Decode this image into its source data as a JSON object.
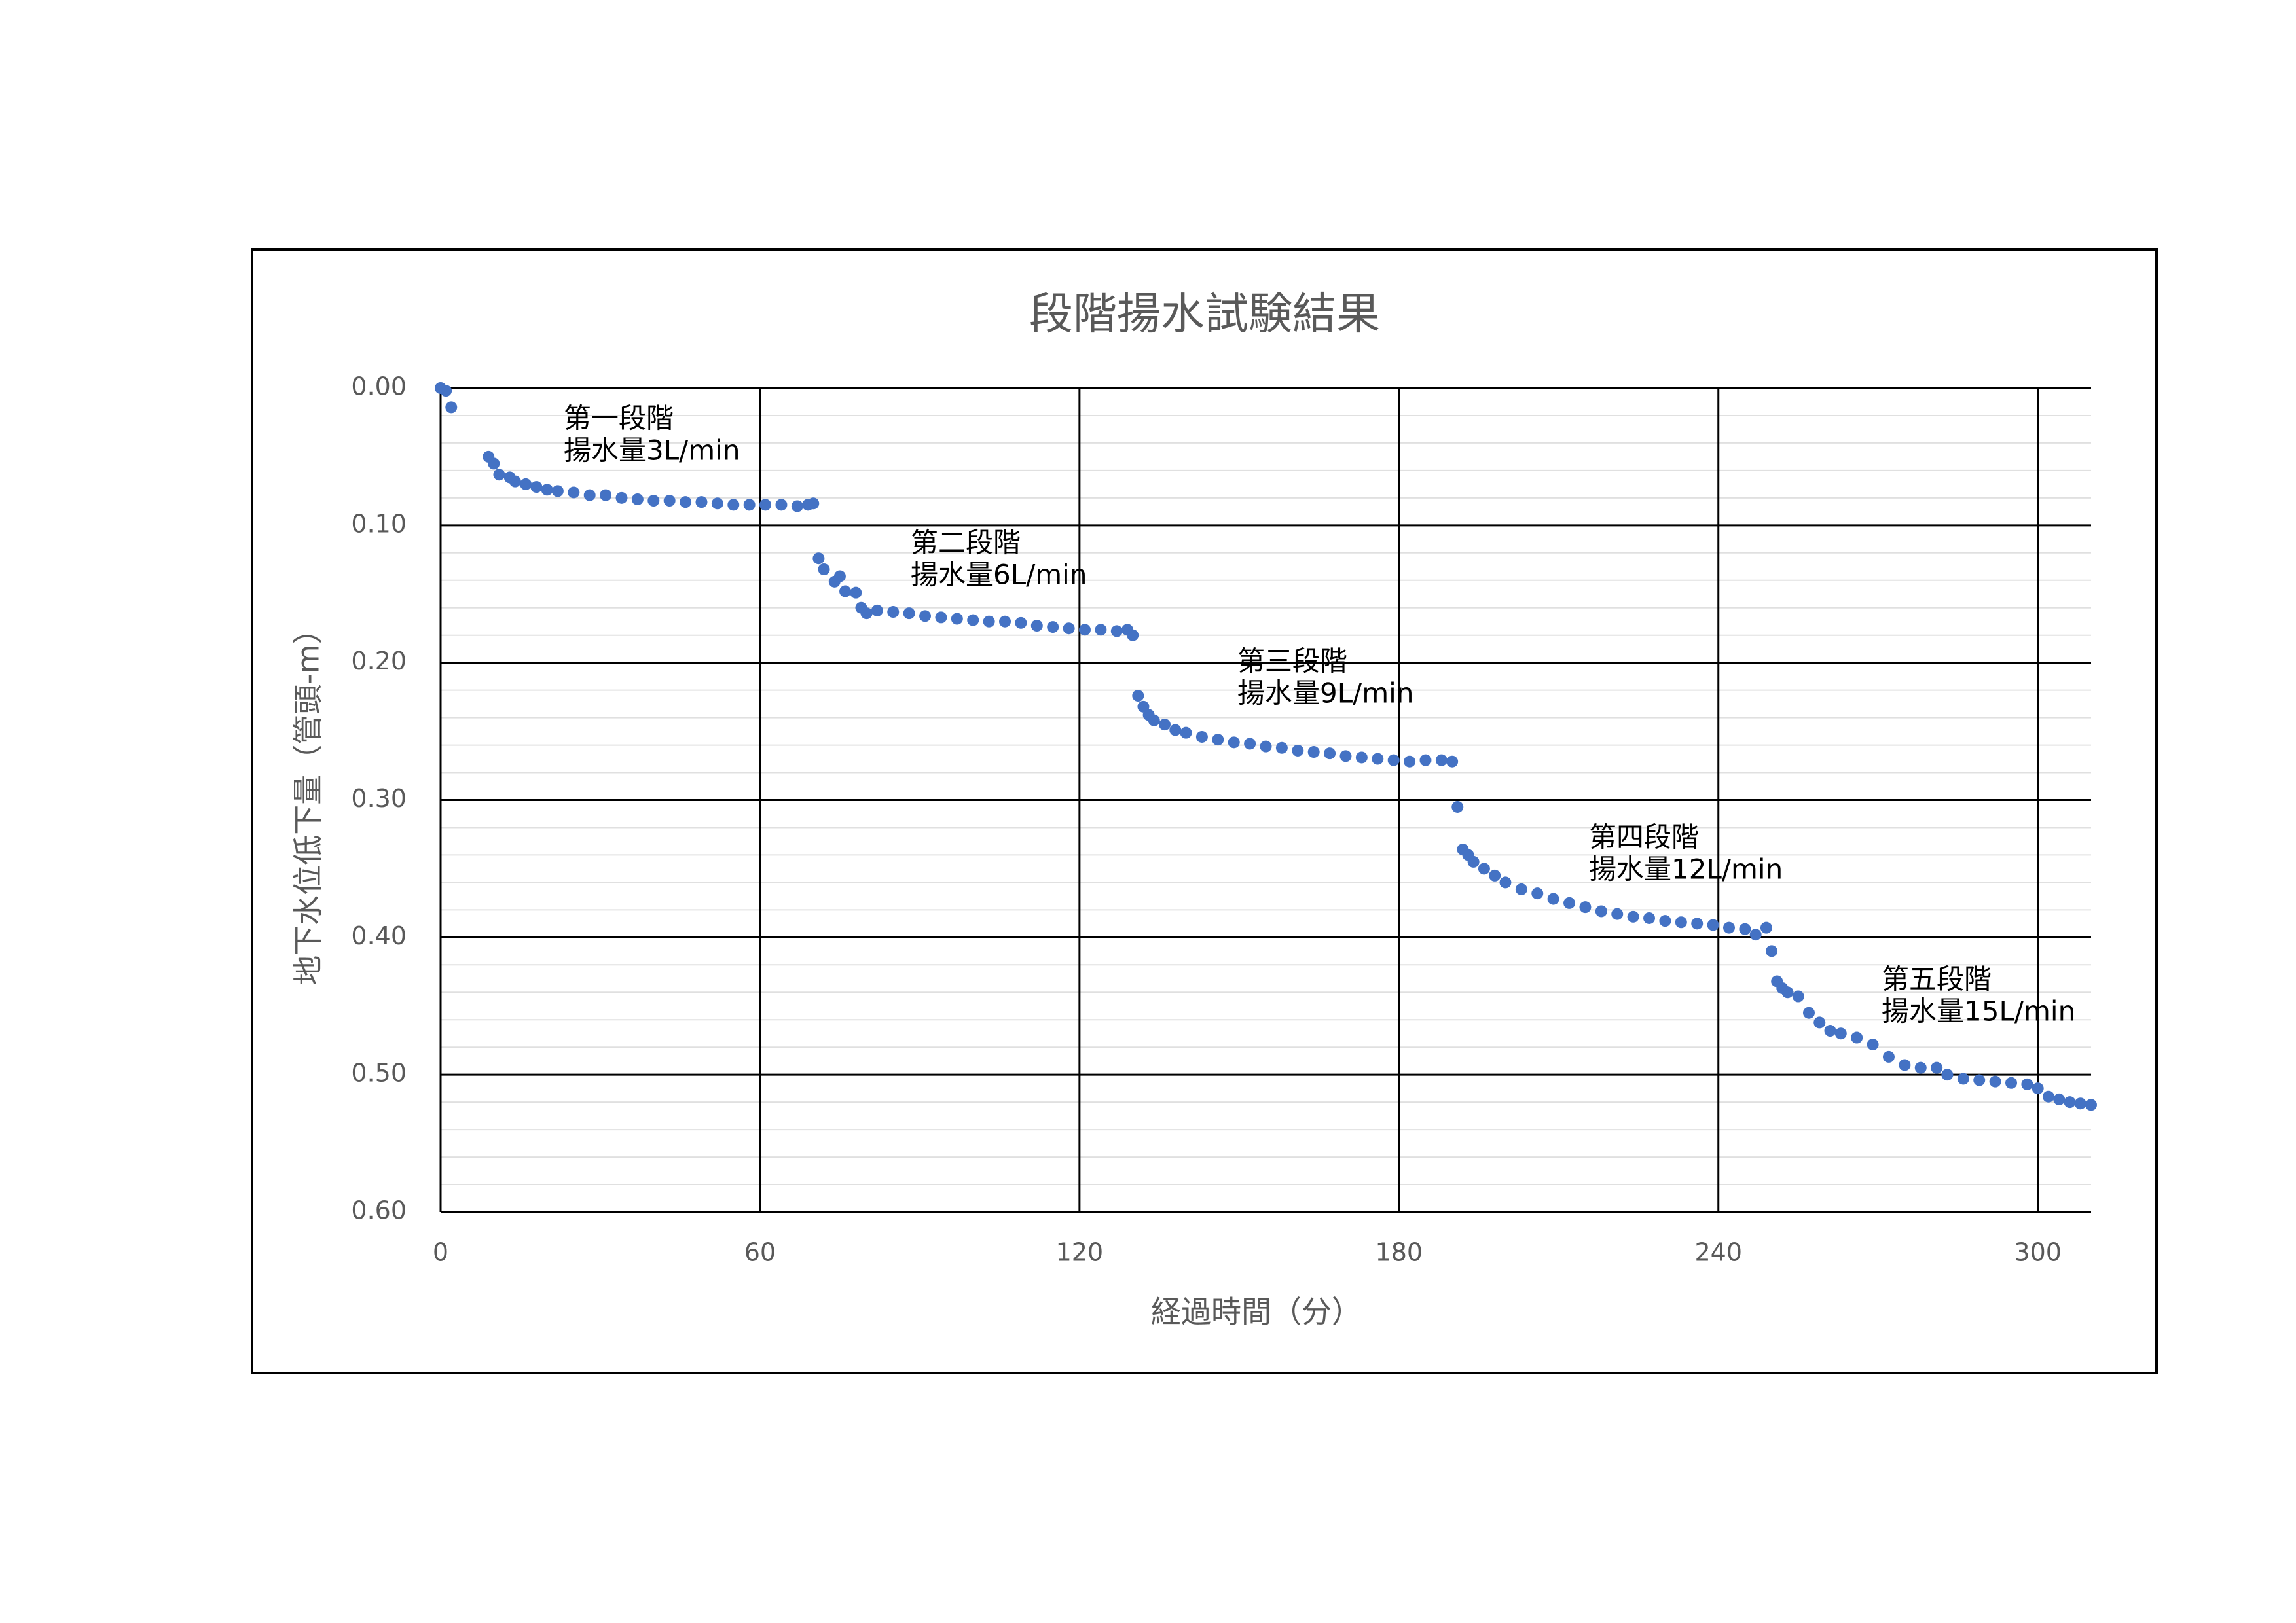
{
  "chart_data": {
    "type": "scatter",
    "title": "段階揚水試験結果",
    "x_label": "経過時間（分）",
    "y_label": "地下水位低下量（管頭-m）",
    "color": "#4472c4",
    "grid": true,
    "y_inverted": true,
    "xlim": [
      0,
      310
    ],
    "xticks": [
      0,
      60,
      120,
      180,
      240,
      300
    ],
    "ylim": [
      0,
      0.6
    ],
    "yticks": [
      {
        "value": 0,
        "label": "0.00"
      },
      {
        "value": 0.1,
        "label": "0.10"
      },
      {
        "value": 0.2,
        "label": "0.20"
      },
      {
        "value": 0.3,
        "label": "0.30"
      },
      {
        "value": 0.4,
        "label": "0.40"
      },
      {
        "value": 0.5,
        "label": "0.50"
      },
      {
        "value": 0.6,
        "label": "0.60"
      }
    ],
    "x": [
      0,
      1,
      2,
      9,
      10,
      11,
      13,
      14,
      16,
      18,
      20,
      22,
      25,
      28,
      31,
      34,
      37,
      40,
      43,
      46,
      49,
      52,
      55,
      58,
      61,
      64,
      67,
      69,
      70,
      71,
      72,
      74,
      75,
      76,
      78,
      79,
      80,
      82,
      85,
      88,
      91,
      94,
      97,
      100,
      103,
      106,
      109,
      112,
      115,
      118,
      121,
      124,
      127,
      129,
      130,
      131,
      132,
      133,
      134,
      136,
      138,
      140,
      143,
      146,
      149,
      152,
      155,
      158,
      161,
      164,
      167,
      170,
      173,
      176,
      179,
      182,
      185,
      188,
      190,
      191,
      192,
      193,
      194,
      196,
      198,
      200,
      203,
      206,
      209,
      212,
      215,
      218,
      221,
      224,
      227,
      230,
      233,
      236,
      239,
      242,
      245,
      247,
      249,
      250,
      251,
      252,
      253,
      255,
      257,
      259,
      261,
      263,
      266,
      269,
      272,
      275,
      278,
      281,
      283,
      286,
      289,
      292,
      295,
      298,
      300,
      302,
      304,
      306,
      308,
      310
    ],
    "values": [
      0,
      0.002,
      0.014,
      0.05,
      0.055,
      0.063,
      0.065,
      0.068,
      0.07,
      0.072,
      0.074,
      0.075,
      0.076,
      0.078,
      0.078,
      0.08,
      0.081,
      0.082,
      0.082,
      0.083,
      0.083,
      0.084,
      0.085,
      0.085,
      0.085,
      0.085,
      0.086,
      0.085,
      0.084,
      0.124,
      0.132,
      0.141,
      0.137,
      0.148,
      0.149,
      0.16,
      0.164,
      0.162,
      0.163,
      0.164,
      0.166,
      0.167,
      0.168,
      0.169,
      0.17,
      0.17,
      0.171,
      0.173,
      0.174,
      0.175,
      0.176,
      0.176,
      0.177,
      0.176,
      0.18,
      0.224,
      0.232,
      0.238,
      0.242,
      0.245,
      0.249,
      0.251,
      0.254,
      0.256,
      0.258,
      0.259,
      0.261,
      0.262,
      0.264,
      0.265,
      0.266,
      0.268,
      0.269,
      0.27,
      0.271,
      0.272,
      0.271,
      0.271,
      0.272,
      0.305,
      0.336,
      0.34,
      0.345,
      0.35,
      0.355,
      0.36,
      0.365,
      0.368,
      0.372,
      0.375,
      0.378,
      0.381,
      0.383,
      0.385,
      0.386,
      0.388,
      0.389,
      0.39,
      0.391,
      0.393,
      0.394,
      0.398,
      0.393,
      0.41,
      0.432,
      0.437,
      0.44,
      0.443,
      0.455,
      0.462,
      0.468,
      0.47,
      0.473,
      0.478,
      0.487,
      0.493,
      0.495,
      0.495,
      0.5,
      0.503,
      0.504,
      0.505,
      0.506,
      0.507,
      0.51,
      0.516,
      0.518,
      0.52,
      0.521,
      0.522
    ],
    "annotations": [
      [
        "第一段階",
        "揚水量3L/min"
      ],
      [
        "第二段階",
        "揚水量6L/min"
      ],
      [
        "第三段階",
        "揚水量9L/min"
      ],
      [
        "第四段階",
        "揚水量12L/min"
      ],
      [
        "第五段階",
        "揚水量15L/min"
      ]
    ]
  }
}
